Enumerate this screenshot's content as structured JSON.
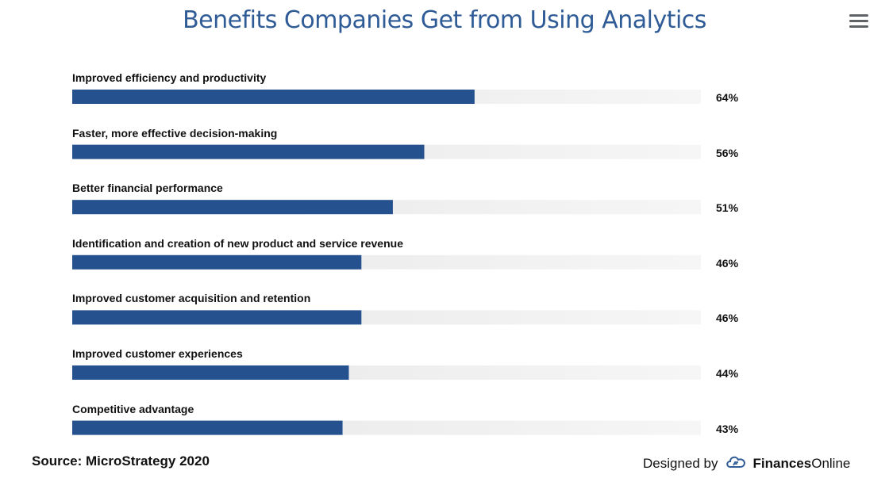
{
  "chart_data": {
    "type": "bar",
    "orientation": "horizontal",
    "title": "Benefits Companies Get from Using Analytics",
    "categories": [
      "Improved efficiency and productivity",
      "Faster, more effective decision-making",
      "Better financial performance",
      "Identification and creation of new product and service revenue",
      "Improved customer acquisition and retention",
      "Improved customer experiences",
      "Competitive advantage"
    ],
    "values": [
      64,
      56,
      51,
      46,
      46,
      44,
      43
    ],
    "value_labels": [
      "64%",
      "56%",
      "51%",
      "46%",
      "46%",
      "44%",
      "43%"
    ],
    "xlim": [
      0,
      100
    ],
    "unit": "%",
    "grid": false,
    "legend": "none",
    "bar_color": "#25528e",
    "track_color": "#e8e8e8"
  },
  "footer": {
    "source": "Source: MicroStrategy 2020",
    "designed_by": "Designed by",
    "brand_bold": "Finances",
    "brand_regular": "Online"
  },
  "menu_icon": "hamburger-menu-icon"
}
